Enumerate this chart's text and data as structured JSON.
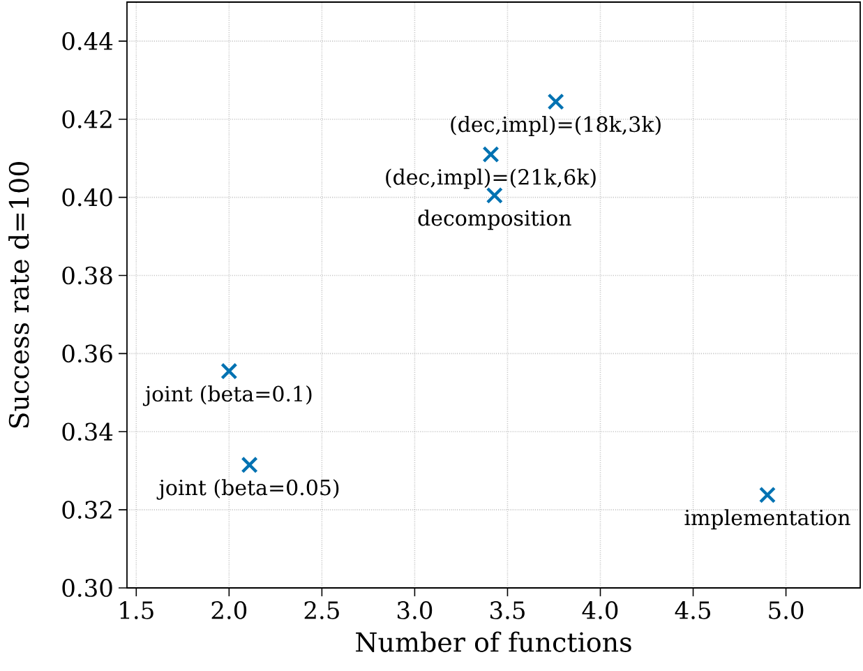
{
  "chart_data": {
    "type": "scatter",
    "xlabel": "Number of functions",
    "ylabel": "Success rate d=100",
    "x": [
      2.0,
      2.11,
      3.41,
      3.43,
      3.76,
      4.9
    ],
    "series": [
      {
        "color": "#0072b2",
        "values": [
          0.3555,
          0.3315,
          0.411,
          0.4005,
          0.4245,
          0.3238
        ]
      }
    ],
    "marker": "cross",
    "grid": true,
    "xlim": [
      1.45,
      5.4
    ],
    "ylim": [
      0.3,
      0.45
    ],
    "xticks": [
      1.5,
      {
        "value": 2.0,
        "label": "2.0"
      },
      2.5,
      {
        "value": 3.0,
        "label": "3.0"
      },
      3.5,
      {
        "value": 4.0,
        "label": "4.0"
      },
      4.5,
      {
        "value": 5.0,
        "label": "5.0"
      }
    ],
    "yticks": [
      {
        "value": 0.3,
        "label": "0.30"
      },
      0.32,
      0.34,
      0.36,
      0.38,
      {
        "value": 0.4,
        "label": "0.40"
      },
      0.42,
      0.44
    ],
    "annotations": [
      {
        "text": "joint (beta=0.1)",
        "x": 2.0,
        "y": 0.3555
      },
      {
        "text": "joint (beta=0.05)",
        "x": 2.11,
        "y": 0.3315
      },
      {
        "text": "(dec,impl)=(21k,6k)",
        "x": 3.41,
        "y": 0.411
      },
      {
        "text": "decomposition",
        "x": 3.43,
        "y": 0.4005
      },
      {
        "text": "(dec,impl)=(18k,3k)",
        "x": 3.76,
        "y": 0.4245
      },
      {
        "text": "implementation",
        "x": 4.9,
        "y": 0.3238
      }
    ]
  }
}
